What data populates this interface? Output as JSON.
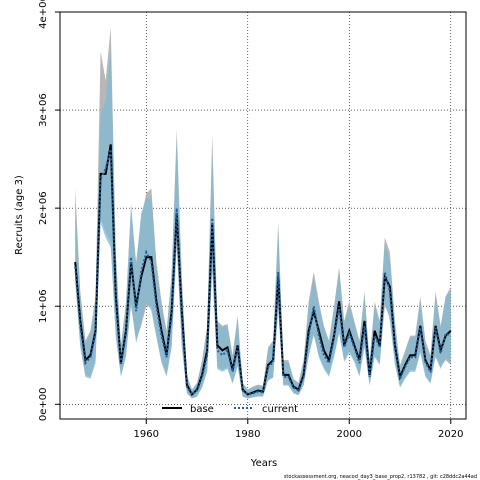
{
  "chart_data": {
    "type": "line",
    "xlabel": "Years",
    "ylabel": "Recruits (age 3)",
    "xlim": [
      1943,
      2023
    ],
    "ylim": [
      -150000,
      4000000
    ],
    "x_ticks": [
      1960,
      1980,
      2000,
      2020
    ],
    "x_tick_labels": [
      "1960",
      "1980",
      "2000",
      "2020"
    ],
    "y_ticks": [
      0,
      1000000,
      2000000,
      3000000,
      4000000
    ],
    "y_tick_labels": [
      "0e+00",
      "1e+06",
      "2e+06",
      "3e+06",
      "4e+06"
    ],
    "grid": true,
    "legend_position": "bottom-left",
    "colors": {
      "base_band": "#b3b3b3",
      "current_band": "#80b8d2",
      "base_line": "#000000",
      "current_line": "#1f5f9f"
    },
    "x": [
      1946,
      1947,
      1948,
      1949,
      1950,
      1951,
      1952,
      1953,
      1954,
      1955,
      1956,
      1957,
      1958,
      1959,
      1960,
      1961,
      1962,
      1963,
      1964,
      1965,
      1966,
      1967,
      1968,
      1969,
      1970,
      1971,
      1972,
      1973,
      1974,
      1975,
      1976,
      1977,
      1978,
      1979,
      1980,
      1981,
      1982,
      1983,
      1984,
      1985,
      1986,
      1987,
      1988,
      1989,
      1990,
      1991,
      1992,
      1993,
      1994,
      1995,
      1996,
      1997,
      1998,
      1999,
      2000,
      2001,
      2002,
      2003,
      2004,
      2005,
      2006,
      2007,
      2008,
      2009,
      2010,
      2011,
      2012,
      2013,
      2014,
      2015,
      2016,
      2017,
      2018,
      2019,
      2020
    ],
    "series": [
      {
        "name": "base",
        "style": "solid",
        "values": [
          1450000.0,
          850000.0,
          450000.0,
          500000.0,
          750000.0,
          2350000.0,
          2350000.0,
          2650000.0,
          1100000.0,
          420000.0,
          750000.0,
          1450000.0,
          1000000.0,
          1300000.0,
          1500000.0,
          1500000.0,
          1050000.0,
          750000.0,
          500000.0,
          950000.0,
          1950000.0,
          950000.0,
          200000.0,
          100000.0,
          150000.0,
          300000.0,
          550000.0,
          1850000.0,
          600000.0,
          550000.0,
          580000.0,
          350000.0,
          600000.0,
          150000.0,
          100000.0,
          120000.0,
          140000.0,
          130000.0,
          400000.0,
          450000.0,
          1300000.0,
          300000.0,
          300000.0,
          180000.0,
          150000.0,
          300000.0,
          750000.0,
          950000.0,
          750000.0,
          550000.0,
          450000.0,
          700000.0,
          1050000.0,
          600000.0,
          750000.0,
          600000.0,
          450000.0,
          850000.0,
          300000.0,
          750000.0,
          600000.0,
          1300000.0,
          1200000.0,
          600000.0,
          280000.0,
          400000.0,
          500000.0,
          500000.0,
          800000.0,
          450000.0,
          350000.0,
          800000.0,
          550000.0,
          700000.0,
          750000.0
        ]
      },
      {
        "name": "current",
        "style": "dotted",
        "values": [
          1400000.0,
          800000.0,
          420000.0,
          480000.0,
          720000.0,
          2300000.0,
          2400000.0,
          2600000.0,
          1050000.0,
          400000.0,
          720000.0,
          1500000.0,
          950000.0,
          1350000.0,
          1550000.0,
          1450000.0,
          1000000.0,
          700000.0,
          480000.0,
          900000.0,
          2000000.0,
          900000.0,
          180000.0,
          100000.0,
          140000.0,
          280000.0,
          500000.0,
          1900000.0,
          550000.0,
          500000.0,
          550000.0,
          330000.0,
          580000.0,
          140000.0,
          100000.0,
          110000.0,
          130000.0,
          120000.0,
          380000.0,
          430000.0,
          1350000.0,
          280000.0,
          280000.0,
          170000.0,
          140000.0,
          280000.0,
          700000.0,
          1000000.0,
          700000.0,
          500000.0,
          420000.0,
          680000.0,
          1000000.0,
          580000.0,
          720000.0,
          580000.0,
          420000.0,
          800000.0,
          280000.0,
          700000.0,
          580000.0,
          1350000.0,
          1150000.0,
          580000.0,
          260000.0,
          380000.0,
          480000.0,
          480000.0,
          780000.0,
          430000.0,
          330000.0,
          780000.0,
          520000.0,
          720000.0,
          700000.0
        ]
      }
    ],
    "bands": [
      {
        "name": "base",
        "lower": [
          1300000.0,
          600000.0,
          300000.0,
          280000.0,
          450000.0,
          1900000.0,
          1750000.0,
          1650000.0,
          700000.0,
          300000.0,
          500000.0,
          1000000.0,
          650000.0,
          800000.0,
          1000000.0,
          1000000.0,
          700000.0,
          450000.0,
          300000.0,
          600000.0,
          1600000.0,
          600000.0,
          120000.0,
          60000.0,
          80000.0,
          180000.0,
          350000.0,
          1350000.0,
          380000.0,
          350000.0,
          380000.0,
          220000.0,
          400000.0,
          80000.0,
          60000.0,
          70000.0,
          80000.0,
          80000.0,
          250000.0,
          280000.0,
          950000.0,
          200000.0,
          200000.0,
          120000.0,
          100000.0,
          200000.0,
          500000.0,
          700000.0,
          500000.0,
          380000.0,
          300000.0,
          500000.0,
          750000.0,
          450000.0,
          550000.0,
          450000.0,
          300000.0,
          600000.0,
          200000.0,
          500000.0,
          420000.0,
          1000000.0,
          900000.0,
          420000.0,
          180000.0,
          280000.0,
          350000.0,
          350000.0,
          550000.0,
          300000.0,
          220000.0,
          500000.0,
          380000.0,
          450000.0,
          400000.0
        ],
        "upper": [
          2200000.0,
          1150000.0,
          650000.0,
          750000.0,
          1100000.0,
          3600000.0,
          3300000.0,
          3850000.0,
          1550000.0,
          600000.0,
          1050000.0,
          2000000.0,
          1450000.0,
          1900000.0,
          2150000.0,
          2200000.0,
          1450000.0,
          1050000.0,
          750000.0,
          1350000.0,
          2800000.0,
          1300000.0,
          300000.0,
          150000.0,
          220000.0,
          450000.0,
          800000.0,
          2750000.0,
          850000.0,
          800000.0,
          820000.0,
          500000.0,
          900000.0,
          220000.0,
          150000.0,
          180000.0,
          200000.0,
          190000.0,
          580000.0,
          650000.0,
          1850000.0,
          450000.0,
          450000.0,
          260000.0,
          220000.0,
          450000.0,
          1050000.0,
          1350000.0,
          1050000.0,
          800000.0,
          650000.0,
          1000000.0,
          1400000.0,
          850000.0,
          1050000.0,
          850000.0,
          650000.0,
          1150000.0,
          450000.0,
          1050000.0,
          850000.0,
          1700000.0,
          1550000.0,
          850000.0,
          400000.0,
          550000.0,
          700000.0,
          700000.0,
          1100000.0,
          650000.0,
          500000.0,
          1150000.0,
          800000.0,
          1100000.0,
          1200000.0
        ]
      },
      {
        "name": "current",
        "lower": [
          1250000.0,
          580000.0,
          280000.0,
          260000.0,
          420000.0,
          1850000.0,
          1700000.0,
          1600000.0,
          680000.0,
          280000.0,
          480000.0,
          1050000.0,
          620000.0,
          850000.0,
          1050000.0,
          950000.0,
          680000.0,
          420000.0,
          280000.0,
          580000.0,
          1650000.0,
          580000.0,
          110000.0,
          60000.0,
          80000.0,
          170000.0,
          330000.0,
          1400000.0,
          360000.0,
          330000.0,
          360000.0,
          210000.0,
          380000.0,
          80000.0,
          60000.0,
          70000.0,
          80000.0,
          80000.0,
          240000.0,
          270000.0,
          1000000.0,
          190000.0,
          190000.0,
          110000.0,
          90000.0,
          190000.0,
          480000.0,
          720000.0,
          480000.0,
          360000.0,
          280000.0,
          480000.0,
          720000.0,
          430000.0,
          520000.0,
          430000.0,
          280000.0,
          580000.0,
          190000.0,
          480000.0,
          400000.0,
          1050000.0,
          850000.0,
          400000.0,
          170000.0,
          260000.0,
          330000.0,
          330000.0,
          520000.0,
          280000.0,
          210000.0,
          480000.0,
          360000.0,
          480000.0,
          420000.0
        ],
        "upper": [
          2100000.0,
          1100000.0,
          620000.0,
          720000.0,
          1050000.0,
          2950000.0,
          3100000.0,
          3600000.0,
          1500000.0,
          580000.0,
          1000000.0,
          2050000.0,
          1400000.0,
          1950000.0,
          2100000.0,
          2100000.0,
          1400000.0,
          1000000.0,
          720000.0,
          1300000.0,
          2700000.0,
          1250000.0,
          280000.0,
          150000.0,
          210000.0,
          430000.0,
          780000.0,
          2600000.0,
          820000.0,
          780000.0,
          800000.0,
          480000.0,
          880000.0,
          210000.0,
          150000.0,
          170000.0,
          190000.0,
          180000.0,
          560000.0,
          620000.0,
          1800000.0,
          430000.0,
          430000.0,
          250000.0,
          210000.0,
          430000.0,
          1000000.0,
          1300000.0,
          1000000.0,
          780000.0,
          620000.0,
          980000.0,
          1350000.0,
          820000.0,
          1000000.0,
          820000.0,
          620000.0,
          1100000.0,
          430000.0,
          1000000.0,
          820000.0,
          1650000.0,
          1450000.0,
          820000.0,
          380000.0,
          520000.0,
          680000.0,
          680000.0,
          1050000.0,
          620000.0,
          480000.0,
          1100000.0,
          780000.0,
          1100000.0,
          1150000.0
        ]
      }
    ],
    "legend": [
      {
        "label": "base",
        "style": "solid"
      },
      {
        "label": "current",
        "style": "dotted"
      }
    ]
  },
  "footer": "stockassessment.org, neacod_day3_base_prop2, r13782 , git: c28ddc2a44ad"
}
